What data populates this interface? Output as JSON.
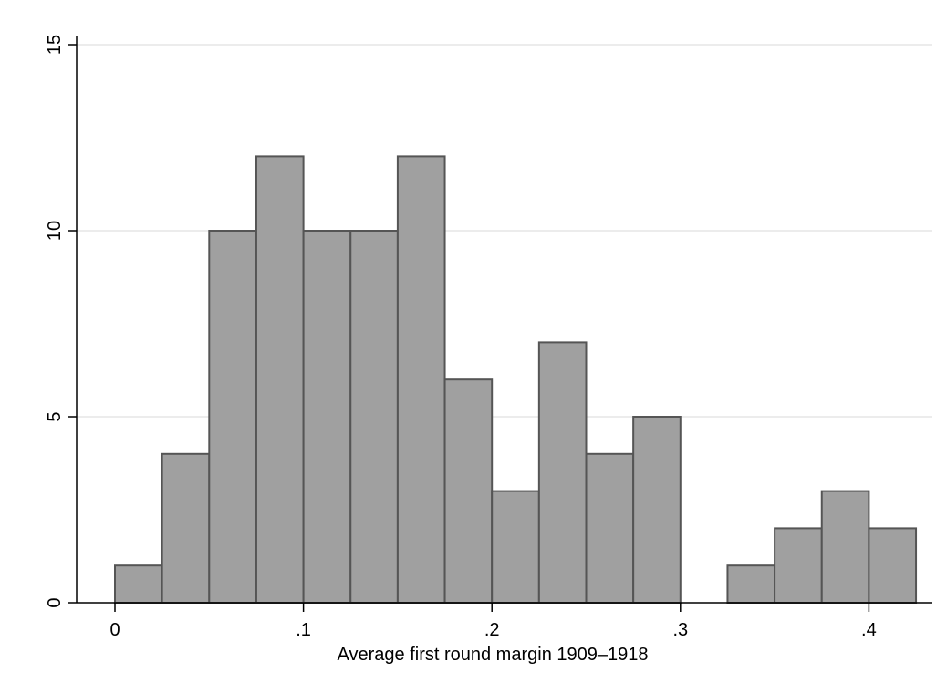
{
  "chart_data": {
    "type": "bar",
    "title": "",
    "xlabel": "Average first round margin 1909–1918",
    "ylabel": "",
    "xlim": [
      0,
      0.425
    ],
    "ylim": [
      0,
      15
    ],
    "bin_width": 0.025,
    "bins": [
      {
        "x0": 0.0,
        "x1": 0.025,
        "value": 1
      },
      {
        "x0": 0.025,
        "x1": 0.05,
        "value": 4
      },
      {
        "x0": 0.05,
        "x1": 0.075,
        "value": 10
      },
      {
        "x0": 0.075,
        "x1": 0.1,
        "value": 12
      },
      {
        "x0": 0.1,
        "x1": 0.125,
        "value": 10
      },
      {
        "x0": 0.125,
        "x1": 0.15,
        "value": 10
      },
      {
        "x0": 0.15,
        "x1": 0.175,
        "value": 12
      },
      {
        "x0": 0.175,
        "x1": 0.2,
        "value": 6
      },
      {
        "x0": 0.2,
        "x1": 0.225,
        "value": 3
      },
      {
        "x0": 0.225,
        "x1": 0.25,
        "value": 7
      },
      {
        "x0": 0.25,
        "x1": 0.275,
        "value": 4
      },
      {
        "x0": 0.275,
        "x1": 0.3,
        "value": 5
      },
      {
        "x0": 0.3,
        "x1": 0.325,
        "value": 0
      },
      {
        "x0": 0.325,
        "x1": 0.35,
        "value": 1
      },
      {
        "x0": 0.35,
        "x1": 0.375,
        "value": 2
      },
      {
        "x0": 0.375,
        "x1": 0.4,
        "value": 3
      },
      {
        "x0": 0.4,
        "x1": 0.425,
        "value": 2
      }
    ],
    "x_ticks": [
      {
        "value": 0.0,
        "label": "0"
      },
      {
        "value": 0.1,
        "label": ".1"
      },
      {
        "value": 0.2,
        "label": ".2"
      },
      {
        "value": 0.3,
        "label": ".3"
      },
      {
        "value": 0.4,
        "label": ".4"
      }
    ],
    "y_ticks": [
      {
        "value": 0,
        "label": "0"
      },
      {
        "value": 5,
        "label": "5"
      },
      {
        "value": 10,
        "label": "10"
      },
      {
        "value": 15,
        "label": "15"
      }
    ],
    "grid": "horizontal",
    "legend": "none",
    "colors": {
      "bar_fill": "#a0a0a0",
      "bar_stroke": "#555555",
      "grid": "#e6e6e6",
      "axis": "#000000",
      "background": "#ffffff"
    }
  }
}
